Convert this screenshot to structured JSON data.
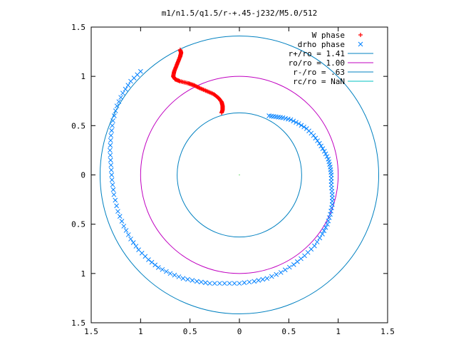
{
  "chart_data": {
    "type": "scatter",
    "title": "m1/n1.5/q1.5/r-+.45-j232/M5.0/512",
    "xlabel": "",
    "ylabel": "",
    "xlim": [
      -1.5,
      1.5
    ],
    "ylim": [
      -1.5,
      1.5
    ],
    "grid": false,
    "legend_position": "top-right",
    "x_tick_labels": [
      "1.5",
      "1",
      "0.5",
      "0",
      "0.5",
      "1",
      "1.5"
    ],
    "y_tick_labels": [
      "1.5",
      "1",
      "0.5",
      "0",
      "0.5",
      "1",
      "1.5"
    ],
    "ticks": [
      -1.5,
      -1,
      -0.5,
      0,
      0.5,
      1,
      1.5
    ],
    "colors": {
      "w_phase": "#ff0000",
      "drho_phase": "#0080ff",
      "r_plus": "#0080c0",
      "r_o": "#c000c0",
      "r_minus": "#0080c0",
      "r_c": "#00c0c0",
      "center": "#00c000"
    },
    "series": [
      {
        "name": "W phase",
        "marker": "plus",
        "points": [
          [
            -0.6,
            1.27
          ],
          [
            -0.59,
            1.24
          ],
          [
            -0.6,
            1.2
          ],
          [
            -0.62,
            1.15
          ],
          [
            -0.64,
            1.1
          ],
          [
            -0.66,
            1.05
          ],
          [
            -0.67,
            1.0
          ],
          [
            -0.65,
            0.97
          ],
          [
            -0.6,
            0.95
          ],
          [
            -0.52,
            0.93
          ],
          [
            -0.46,
            0.91
          ],
          [
            -0.4,
            0.88
          ],
          [
            -0.33,
            0.85
          ],
          [
            -0.26,
            0.82
          ],
          [
            -0.21,
            0.78
          ],
          [
            -0.18,
            0.74
          ],
          [
            -0.17,
            0.7
          ],
          [
            -0.17,
            0.66
          ],
          [
            -0.18,
            0.63
          ]
        ]
      },
      {
        "name": "drho phase",
        "marker": "cross",
        "points": [
          [
            -1.0,
            1.05
          ],
          [
            -1.1,
            0.95
          ],
          [
            -1.18,
            0.83
          ],
          [
            -1.24,
            0.7
          ],
          [
            -1.28,
            0.55
          ],
          [
            -1.3,
            0.4
          ],
          [
            -1.31,
            0.25
          ],
          [
            -1.3,
            0.1
          ],
          [
            -1.29,
            -0.05
          ],
          [
            -1.27,
            -0.2
          ],
          [
            -1.23,
            -0.37
          ],
          [
            -1.17,
            -0.52
          ],
          [
            -1.1,
            -0.65
          ],
          [
            -1.02,
            -0.76
          ],
          [
            -0.92,
            -0.86
          ],
          [
            -0.82,
            -0.94
          ],
          [
            -0.7,
            -1.0
          ],
          [
            -0.57,
            -1.05
          ],
          [
            -0.43,
            -1.08
          ],
          [
            -0.3,
            -1.1
          ],
          [
            -0.15,
            -1.1
          ],
          [
            0.0,
            -1.1
          ],
          [
            0.15,
            -1.08
          ],
          [
            0.28,
            -1.05
          ],
          [
            0.42,
            -0.99
          ],
          [
            0.55,
            -0.91
          ],
          [
            0.66,
            -0.82
          ],
          [
            0.76,
            -0.72
          ],
          [
            0.84,
            -0.6
          ],
          [
            0.89,
            -0.5
          ],
          [
            0.92,
            -0.4
          ],
          [
            0.94,
            -0.3
          ],
          [
            0.94,
            -0.2
          ],
          [
            0.93,
            -0.1
          ],
          [
            0.93,
            0.0
          ],
          [
            0.92,
            0.08
          ],
          [
            0.9,
            0.16
          ],
          [
            0.86,
            0.24
          ],
          [
            0.81,
            0.32
          ],
          [
            0.75,
            0.4
          ],
          [
            0.68,
            0.47
          ],
          [
            0.6,
            0.52
          ],
          [
            0.52,
            0.56
          ],
          [
            0.44,
            0.58
          ],
          [
            0.37,
            0.59
          ],
          [
            0.3,
            0.6
          ]
        ]
      },
      {
        "name": "r+/ro = 1.41",
        "type": "circle",
        "radius": 1.41
      },
      {
        "name": "ro/ro = 1.00",
        "type": "circle",
        "radius": 1.0
      },
      {
        "name": "r-/ro = .63",
        "type": "circle",
        "radius": 0.63
      },
      {
        "name": "rc/ro = NaN",
        "type": "circle",
        "radius": null
      }
    ]
  }
}
